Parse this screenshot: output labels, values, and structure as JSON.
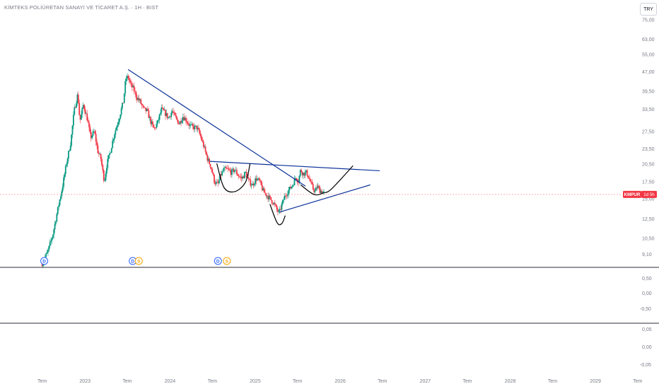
{
  "header": {
    "title": "KİMTEKS POLİÜRETAN SANAYİ VE TİCARET A.Ş. · 1H · BIST",
    "currency": "TRY"
  },
  "price_label": {
    "symbol": "KMPUR",
    "countdown": "1d 5h",
    "value": 15.6
  },
  "markers": [
    {
      "type": "dividend",
      "glyph": "D",
      "x": "2022-07-10"
    },
    {
      "type": "dividend",
      "glyph": "D",
      "x": "2023-07-25"
    },
    {
      "type": "split",
      "glyph": "S",
      "x": "2023-08-20"
    },
    {
      "type": "dividend",
      "glyph": "D",
      "x": "2024-07-25"
    },
    {
      "type": "split",
      "glyph": "S",
      "x": "2024-09-01"
    }
  ],
  "panes": {
    "oscillator1_ticks": [
      "0,50",
      "0,00",
      "-0,50"
    ],
    "oscillator2_ticks": [
      "0,05",
      "0,00",
      "-0,05"
    ]
  },
  "chart_data": {
    "type": "candlestick",
    "y_scale": "log",
    "ylim": [
      8.2,
      82
    ],
    "xlim": [
      "2022-01-01",
      "2029-10-01"
    ],
    "y_ticks": [
      {
        "value": 9.1,
        "label": "9,10"
      },
      {
        "value": 10.5,
        "label": "10,50"
      },
      {
        "value": 12.5,
        "label": "12,50"
      },
      {
        "value": 15.0,
        "label": "15,00"
      },
      {
        "value": 17.5,
        "label": "17,50"
      },
      {
        "value": 20.5,
        "label": "20,50"
      },
      {
        "value": 23.5,
        "label": "23,50"
      },
      {
        "value": 27.5,
        "label": "27,50"
      },
      {
        "value": 33.5,
        "label": "33,50"
      },
      {
        "value": 39.5,
        "label": "39,50"
      },
      {
        "value": 47.0,
        "label": "47,00"
      },
      {
        "value": 55.0,
        "label": "55,00"
      },
      {
        "value": 63.0,
        "label": "63,00"
      },
      {
        "value": 75.0,
        "label": "75,00"
      }
    ],
    "x_ticks": [
      {
        "date": "2022-07-01",
        "label": "Tem"
      },
      {
        "date": "2023-01-01",
        "label": "2023"
      },
      {
        "date": "2023-07-01",
        "label": "Tem"
      },
      {
        "date": "2024-01-01",
        "label": "2024"
      },
      {
        "date": "2024-07-01",
        "label": "Tem"
      },
      {
        "date": "2025-01-01",
        "label": "2025"
      },
      {
        "date": "2025-07-01",
        "label": "Tem"
      },
      {
        "date": "2026-01-01",
        "label": "2026"
      },
      {
        "date": "2026-07-01",
        "label": "Tem"
      },
      {
        "date": "2027-01-01",
        "label": "2027"
      },
      {
        "date": "2027-07-01",
        "label": "Tem"
      },
      {
        "date": "2028-01-01",
        "label": "2028"
      },
      {
        "date": "2028-07-01",
        "label": "Tem"
      },
      {
        "date": "2029-01-01",
        "label": "2029"
      },
      {
        "date": "2029-07-01",
        "label": "Tem"
      }
    ],
    "price_anchors": [
      [
        "2022-07-01",
        8.4
      ],
      [
        "2022-07-25",
        9.3
      ],
      [
        "2022-08-15",
        10.8
      ],
      [
        "2022-09-05",
        13.5
      ],
      [
        "2022-09-25",
        16.5
      ],
      [
        "2022-10-15",
        21.0
      ],
      [
        "2022-11-01",
        25.0
      ],
      [
        "2022-11-15",
        33.0
      ],
      [
        "2022-12-01",
        38.5
      ],
      [
        "2022-12-10",
        30.0
      ],
      [
        "2022-12-25",
        35.0
      ],
      [
        "2023-01-10",
        31.0
      ],
      [
        "2023-01-25",
        26.0
      ],
      [
        "2023-02-10",
        27.5
      ],
      [
        "2023-02-25",
        23.0
      ],
      [
        "2023-03-10",
        21.5
      ],
      [
        "2023-03-25",
        17.5
      ],
      [
        "2023-04-05",
        20.5
      ],
      [
        "2023-04-20",
        23.0
      ],
      [
        "2023-05-05",
        26.5
      ],
      [
        "2023-05-25",
        30.5
      ],
      [
        "2023-06-15",
        36.0
      ],
      [
        "2023-06-25",
        44.0
      ],
      [
        "2023-07-05",
        45.0
      ],
      [
        "2023-07-15",
        42.0
      ],
      [
        "2023-07-30",
        40.0
      ],
      [
        "2023-08-10",
        37.5
      ],
      [
        "2023-08-25",
        36.0
      ],
      [
        "2023-09-10",
        33.5
      ],
      [
        "2023-09-25",
        33.0
      ],
      [
        "2023-10-10",
        30.0
      ],
      [
        "2023-10-25",
        28.0
      ],
      [
        "2023-11-10",
        30.0
      ],
      [
        "2023-11-25",
        33.5
      ],
      [
        "2023-12-10",
        32.5
      ],
      [
        "2023-12-25",
        31.0
      ],
      [
        "2024-01-10",
        33.0
      ],
      [
        "2024-01-25",
        31.0
      ],
      [
        "2024-02-10",
        29.5
      ],
      [
        "2024-02-25",
        31.5
      ],
      [
        "2024-03-10",
        30.5
      ],
      [
        "2024-03-25",
        29.0
      ],
      [
        "2024-04-10",
        28.5
      ],
      [
        "2024-04-25",
        28.5
      ],
      [
        "2024-05-10",
        26.5
      ],
      [
        "2024-05-25",
        24.0
      ],
      [
        "2024-06-10",
        21.5
      ],
      [
        "2024-06-25",
        20.0
      ],
      [
        "2024-07-10",
        17.5
      ],
      [
        "2024-07-25",
        17.0
      ],
      [
        "2024-08-05",
        18.5
      ],
      [
        "2024-08-20",
        19.5
      ],
      [
        "2024-09-05",
        19.5
      ],
      [
        "2024-09-20",
        19.0
      ],
      [
        "2024-10-05",
        19.5
      ],
      [
        "2024-10-20",
        18.5
      ],
      [
        "2024-11-05",
        18.0
      ],
      [
        "2024-11-20",
        19.0
      ],
      [
        "2024-12-05",
        17.5
      ],
      [
        "2024-12-20",
        17.0
      ],
      [
        "2025-01-05",
        18.0
      ],
      [
        "2025-01-20",
        17.5
      ],
      [
        "2025-02-05",
        16.0
      ],
      [
        "2025-02-20",
        15.5
      ],
      [
        "2025-03-05",
        15.0
      ],
      [
        "2025-03-20",
        14.5
      ],
      [
        "2025-04-05",
        13.5
      ],
      [
        "2025-04-15",
        13.2
      ],
      [
        "2025-04-25",
        14.2
      ],
      [
        "2025-05-10",
        15.5
      ],
      [
        "2025-05-25",
        16.2
      ],
      [
        "2025-06-10",
        17.0
      ],
      [
        "2025-06-25",
        18.3
      ],
      [
        "2025-07-05",
        17.5
      ],
      [
        "2025-07-15",
        19.5
      ],
      [
        "2025-07-25",
        18.8
      ],
      [
        "2025-08-10",
        19.0
      ],
      [
        "2025-08-25",
        17.5
      ],
      [
        "2025-09-05",
        16.5
      ],
      [
        "2025-09-15",
        16.0
      ],
      [
        "2025-09-25",
        16.8
      ],
      [
        "2025-10-05",
        16.2
      ],
      [
        "2025-10-15",
        16.0
      ],
      [
        "2025-10-25",
        15.8
      ]
    ],
    "drawings": [
      {
        "kind": "trendline",
        "points": [
          [
            "2023-07-05",
            48.0
          ],
          [
            "2025-08-05",
            16.8
          ]
        ]
      },
      {
        "kind": "trendline",
        "points": [
          [
            "2024-06-20",
            21.0
          ],
          [
            "2026-06-20",
            19.3
          ]
        ]
      },
      {
        "kind": "trendline",
        "points": [
          [
            "2025-04-15",
            13.3
          ],
          [
            "2026-05-10",
            17.0
          ]
        ]
      },
      {
        "kind": "curve",
        "points": [
          [
            "2024-07-20",
            20.6
          ],
          [
            "2024-08-20",
            16.6
          ],
          [
            "2024-10-05",
            16.0
          ],
          [
            "2024-11-20",
            17.4
          ],
          [
            "2024-12-10",
            20.6
          ]
        ]
      },
      {
        "kind": "curve",
        "points": [
          [
            "2025-03-05",
            14.3
          ],
          [
            "2025-04-05",
            12.1
          ],
          [
            "2025-04-25",
            12.0
          ],
          [
            "2025-05-10",
            12.9
          ]
        ]
      },
      {
        "kind": "curve",
        "points": [
          [
            "2025-07-15",
            17.0
          ],
          [
            "2025-09-10",
            15.6
          ],
          [
            "2025-10-20",
            15.8
          ],
          [
            "2025-11-25",
            16.4
          ],
          [
            "2026-02-25",
            20.2
          ]
        ]
      }
    ]
  }
}
